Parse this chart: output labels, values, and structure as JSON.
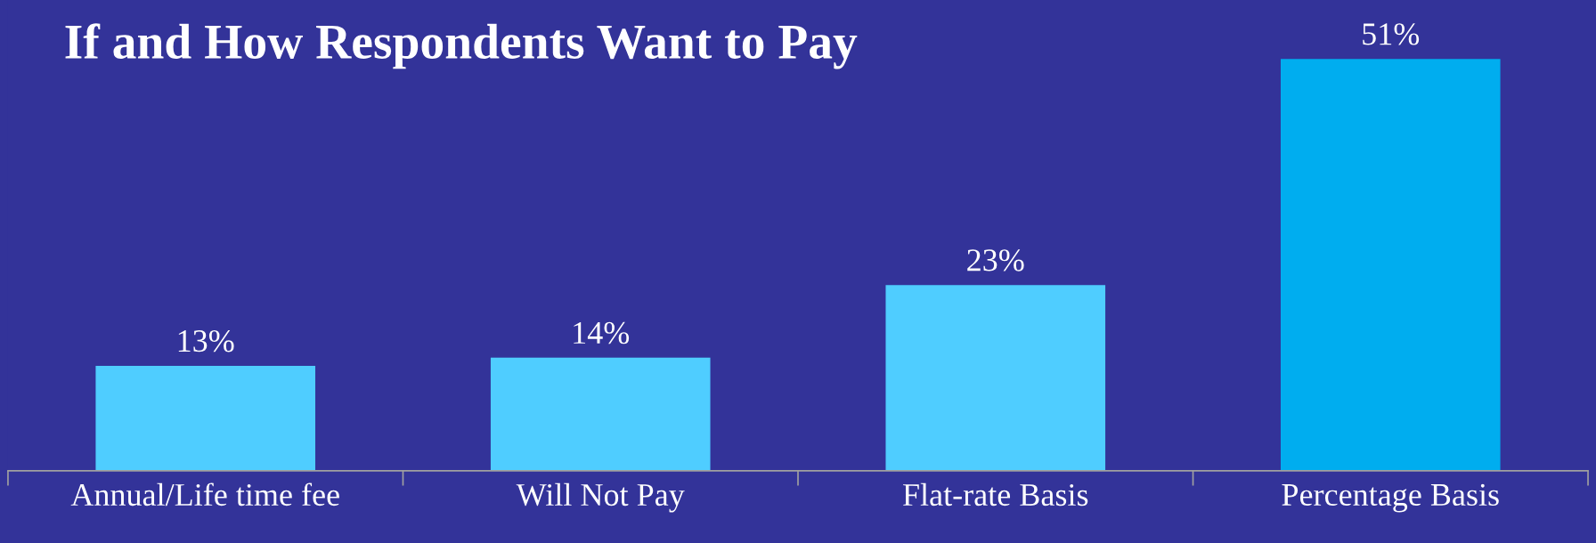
{
  "chart_data": {
    "type": "bar",
    "title": "If and How Respondents Want to Pay",
    "categories": [
      "Annual/Life time fee",
      "Will Not Pay",
      "Flat-rate Basis",
      "Percentage Basis"
    ],
    "values": [
      13,
      14,
      23,
      51
    ],
    "colors": [
      "#4fcdff",
      "#4fcdff",
      "#4fcdff",
      "#00adef"
    ],
    "value_labels": [
      "13%",
      "14%",
      "23%",
      "51%"
    ],
    "grid": false,
    "legend": false
  }
}
